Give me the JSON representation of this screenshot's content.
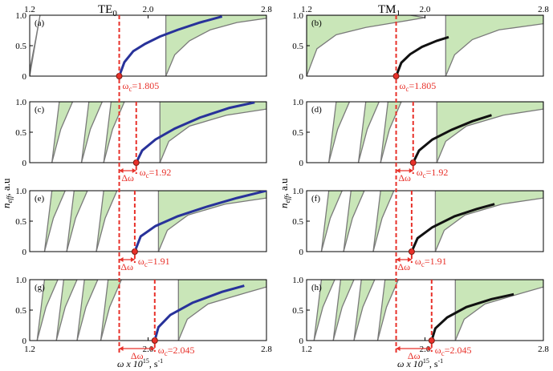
{
  "figure": {
    "col_titles": [
      "TE",
      "TM"
    ],
    "col_title_subs": [
      "0",
      "1"
    ],
    "ylabel": "n",
    "ylabel_sub": "eff",
    "ylabel_unit": ", a.u",
    "xlabel": "ω x 10",
    "xlabel_exp": "15",
    "xlabel_unit": ", s",
    "xlabel_unit_exp": "-1"
  },
  "colors": {
    "band_fill": "#c9e6b8",
    "band_stroke": "#7a7a7a",
    "te_curve": "#28329a",
    "tm_curve": "#111111",
    "marker": "#e8312a",
    "cutoff_line": "#e8312a"
  },
  "chart_data": [
    {
      "type": "area",
      "panel": "(a)",
      "mode": "TE0",
      "xlim": [
        1.2,
        2.8
      ],
      "ylim": [
        0,
        1.0
      ],
      "xticks": [
        1.2,
        2.0,
        2.8
      ],
      "yticks": [
        0,
        0.5,
        1.0
      ],
      "top_ticks_extra": [
        {
          "value": 1.805,
          "label": "0"
        }
      ],
      "cutoff": 1.805,
      "cutoff_label": "ω",
      "cutoff_sub": "c",
      "cutoff_value": "=1.805",
      "curve": {
        "x": [
          1.805,
          1.84,
          1.9,
          1.98,
          2.08,
          2.2,
          2.35,
          2.5
        ],
        "y": [
          0.0,
          0.23,
          0.41,
          0.53,
          0.65,
          0.76,
          0.88,
          0.98
        ]
      },
      "curve_gaps": [
        [
          2.45,
          2.47
        ]
      ],
      "bands": [
        {
          "upper": {
            "x": [
              1.2,
              1.24,
              1.27
            ],
            "y": [
              0.1,
              0.6,
              1.0
            ]
          },
          "lower": {
            "x": [
              1.2,
              1.2
            ],
            "y": [
              0.0,
              0.0
            ]
          }
        },
        {
          "upper": {
            "x": [
              2.12,
              2.8
            ],
            "y": [
              1.0,
              1.0
            ]
          },
          "lower": {
            "x": [
              2.12,
              2.18,
              2.28,
              2.42,
              2.6,
              2.8
            ],
            "y": [
              0.0,
              0.35,
              0.58,
              0.76,
              0.88,
              0.95
            ]
          }
        }
      ]
    },
    {
      "type": "area",
      "panel": "(b)",
      "mode": "TM1",
      "xlim": [
        1.2,
        2.8
      ],
      "ylim": [
        0,
        1.0
      ],
      "xticks": [
        1.2,
        2.0,
        2.8
      ],
      "yticks": [
        0,
        0.5,
        1.0
      ],
      "top_ticks_extra": [
        {
          "value": 1.805,
          "label": "1"
        }
      ],
      "cutoff": 1.805,
      "cutoff_label": "ω",
      "cutoff_sub": "c",
      "cutoff_value": "=1.805",
      "curve": {
        "x": [
          1.805,
          1.84,
          1.9,
          1.98,
          2.08,
          2.16
        ],
        "y": [
          0.0,
          0.22,
          0.36,
          0.48,
          0.58,
          0.64
        ]
      },
      "curve_gaps": [
        [
          2.08,
          2.1
        ]
      ]
    },
    {
      "type": "area",
      "panel": "(c)",
      "mode": "TE0",
      "xlim": [
        1.2,
        2.8
      ],
      "ylim": [
        0,
        1.0
      ],
      "yticks": [
        0,
        0.5,
        1.0
      ],
      "cutoff": 1.92,
      "cutoff_label": "ω",
      "cutoff_sub": "c",
      "cutoff_value": "=1.92",
      "delta_label": "Δω",
      "curve": {
        "x": [
          1.92,
          1.96,
          2.05,
          2.18,
          2.35,
          2.55,
          2.72
        ],
        "y": [
          0.0,
          0.2,
          0.38,
          0.56,
          0.74,
          0.9,
          0.99
        ]
      }
    },
    {
      "type": "area",
      "panel": "(d)",
      "mode": "TM1",
      "xlim": [
        1.2,
        2.8
      ],
      "ylim": [
        0,
        1.0
      ],
      "yticks": [
        0,
        0.5,
        1.0
      ],
      "cutoff": 1.92,
      "cutoff_label": "ω",
      "cutoff_sub": "c",
      "cutoff_value": "=1.92",
      "delta_label": "Δω",
      "curve": {
        "x": [
          1.92,
          1.96,
          2.05,
          2.18,
          2.32,
          2.45
        ],
        "y": [
          0.0,
          0.2,
          0.38,
          0.54,
          0.68,
          0.78
        ]
      }
    },
    {
      "type": "area",
      "panel": "(e)",
      "mode": "TE0",
      "xlim": [
        1.2,
        2.8
      ],
      "ylim": [
        0,
        1.0
      ],
      "yticks": [
        0,
        0.5,
        1.0
      ],
      "cutoff": 1.91,
      "cutoff_label": "ω",
      "cutoff_sub": "c",
      "cutoff_value": "=1.91",
      "delta_label": "Δω",
      "curve": {
        "x": [
          1.91,
          1.95,
          2.05,
          2.2,
          2.4,
          2.6,
          2.8
        ],
        "y": [
          0.0,
          0.25,
          0.42,
          0.58,
          0.74,
          0.88,
          1.0
        ]
      }
    },
    {
      "type": "area",
      "panel": "(f)",
      "mode": "TM1",
      "xlim": [
        1.2,
        2.8
      ],
      "ylim": [
        0,
        1.0
      ],
      "yticks": [
        0,
        0.5,
        1.0
      ],
      "cutoff": 1.91,
      "cutoff_label": "ω",
      "cutoff_sub": "c",
      "cutoff_value": "=1.91",
      "delta_label": "Δω",
      "curve": {
        "x": [
          1.91,
          1.95,
          2.05,
          2.2,
          2.35,
          2.47
        ],
        "y": [
          0.0,
          0.22,
          0.4,
          0.58,
          0.7,
          0.78
        ]
      }
    },
    {
      "type": "area",
      "panel": "(g)",
      "mode": "TE0",
      "xlim": [
        1.2,
        2.8
      ],
      "ylim": [
        0,
        1.0
      ],
      "xticks": [
        1.2,
        2.0,
        2.8
      ],
      "yticks": [
        0,
        0.5,
        1.0
      ],
      "cutoff": 2.045,
      "cutoff_label": "ω",
      "cutoff_sub": "c",
      "cutoff_value": "=2.045",
      "delta_label": "Δω",
      "curve": {
        "x": [
          2.045,
          2.07,
          2.15,
          2.3,
          2.5,
          2.65
        ],
        "y": [
          0.0,
          0.22,
          0.42,
          0.62,
          0.8,
          0.9
        ]
      }
    },
    {
      "type": "area",
      "panel": "(h)",
      "mode": "TM1",
      "xlim": [
        1.2,
        2.8
      ],
      "ylim": [
        0,
        1.0
      ],
      "xticks": [
        1.2,
        2.0,
        2.8
      ],
      "yticks": [
        0,
        0.5,
        1.0
      ],
      "cutoff": 2.045,
      "cutoff_label": "ω",
      "cutoff_sub": "c",
      "cutoff_value": "=2.045",
      "delta_label": "Δω",
      "curve": {
        "x": [
          2.045,
          2.07,
          2.15,
          2.28,
          2.45,
          2.6
        ],
        "y": [
          0.0,
          0.2,
          0.38,
          0.55,
          0.68,
          0.76
        ]
      }
    }
  ]
}
